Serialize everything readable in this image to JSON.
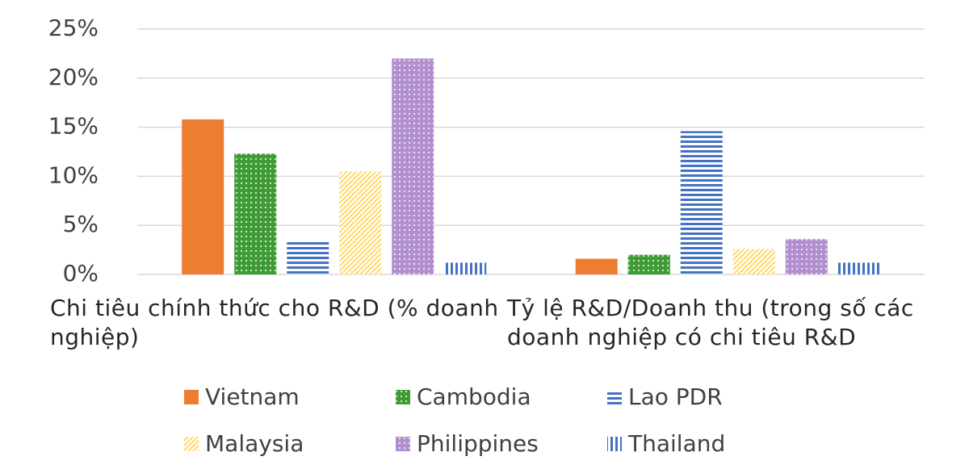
{
  "chart_data": {
    "type": "bar",
    "categories": [
      "Chi tiêu chính thức cho R&D (% doanh nghiệp)",
      "Tỷ lệ R&D/Doanh thu (trong số các doanh nghiệp có chi tiêu R&D"
    ],
    "series": [
      {
        "name": "Vietnam",
        "color": "#ed7d31",
        "pattern": "solid",
        "values": [
          15.8,
          1.6
        ]
      },
      {
        "name": "Cambodia",
        "color": "#3f9b35",
        "pattern": "grid",
        "values": [
          12.3,
          2.0
        ]
      },
      {
        "name": "Lao PDR",
        "color": "#4472c4",
        "pattern": "horizontal",
        "values": [
          3.5,
          14.6
        ]
      },
      {
        "name": "Malaysia",
        "color": "#ffd966",
        "pattern": "diagonal",
        "values": [
          10.5,
          2.6
        ]
      },
      {
        "name": "Philippines",
        "color": "#b28fce",
        "pattern": "dots",
        "values": [
          22.0,
          3.6
        ]
      },
      {
        "name": "Thailand",
        "color": "#4472c4",
        "pattern": "vertical",
        "values": [
          1.2,
          1.2
        ]
      }
    ],
    "ylim": [
      0,
      25
    ],
    "yticks": [
      {
        "value": 0,
        "label": "0%"
      },
      {
        "value": 5,
        "label": "5%"
      },
      {
        "value": 10,
        "label": "10%"
      },
      {
        "value": 15,
        "label": "15%"
      },
      {
        "value": 20,
        "label": "20%"
      },
      {
        "value": 25,
        "label": "25%"
      }
    ],
    "grid": true,
    "legend": "bottom"
  }
}
